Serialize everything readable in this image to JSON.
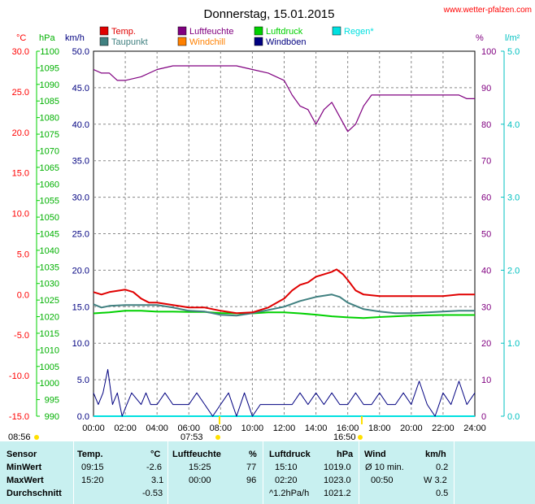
{
  "header": {
    "title": "Donnerstag, 15.01.2015",
    "source": "www.wetter-pfalzen.com"
  },
  "axes": {
    "units_left": [
      "°C",
      "hPa",
      "km/h"
    ],
    "units_right": [
      "%",
      "l/m²"
    ],
    "temp_ticks": [
      "30.0",
      "25.0",
      "20.0",
      "15.0",
      "10.0",
      "5.0",
      "0.0",
      "-5.0",
      "-10.0",
      "-15.0"
    ],
    "pressure_ticks": [
      "1100",
      "1095",
      "1090",
      "1085",
      "1080",
      "1075",
      "1070",
      "1065",
      "1060",
      "1055",
      "1050",
      "1045",
      "1040",
      "1035",
      "1030",
      "1025",
      "1020",
      "1015",
      "1010",
      "1005",
      "1000",
      "995",
      "990"
    ],
    "wind_ticks": [
      "50.0",
      "45.0",
      "40.0",
      "35.0",
      "30.0",
      "25.0",
      "20.0",
      "15.0",
      "10.0",
      "5.0",
      "0.0"
    ],
    "humidity_ticks": [
      "100",
      "90",
      "80",
      "70",
      "60",
      "50",
      "40",
      "30",
      "20",
      "10",
      "0"
    ],
    "rain_ticks": [
      "5.0",
      "4.0",
      "3.0",
      "2.0",
      "1.0",
      "0.0"
    ],
    "time_ticks": [
      "00:00",
      "02:00",
      "04:00",
      "06:00",
      "08:00",
      "10:00",
      "12:00",
      "14:00",
      "16:00",
      "18:00",
      "20:00",
      "22:00",
      "24:00"
    ],
    "sun": {
      "sunrise_prev": "08:56",
      "sunrise": "07:53",
      "sunset": "16:50"
    }
  },
  "legend": [
    {
      "label": "Temp.",
      "color": "#e00000"
    },
    {
      "label": "Luftfeuchte",
      "color": "#800080"
    },
    {
      "label": "Luftdruck",
      "color": "#00d000"
    },
    {
      "label": "Regen*",
      "color": "#00e0e0"
    },
    {
      "label": "Taupunkt",
      "color": "#408080"
    },
    {
      "label": "Windchill",
      "color": "#ff8000"
    },
    {
      "label": "Windböen",
      "color": "#000080"
    }
  ],
  "colors": {
    "temp": "#e00000",
    "dewpoint": "#408080",
    "humidity": "#800080",
    "pressure": "#00d000",
    "windgust": "#000080",
    "rain": "#00e0e0",
    "windchill": "#ff8000",
    "sun": "#ffe000",
    "stats_bg": "#c8f0f0"
  },
  "chart_data": {
    "type": "line",
    "title": "Donnerstag, 15.01.2015",
    "x_unit": "hour",
    "xlim": [
      0,
      24
    ],
    "axes_ranges": {
      "temp_c": [
        -15,
        30
      ],
      "pressure_hpa": [
        990,
        1100
      ],
      "wind_kmh": [
        0,
        50
      ],
      "humidity_pct": [
        0,
        100
      ],
      "rain_lm2": [
        0,
        5
      ]
    },
    "grid": true,
    "series": [
      {
        "name": "Temp.",
        "axis": "temp_c",
        "x": [
          0,
          0.5,
          1,
          2,
          2.5,
          3,
          3.5,
          4,
          5,
          6,
          7,
          8,
          9,
          10,
          11,
          12,
          12.5,
          13,
          13.5,
          14,
          14.5,
          15,
          15.3,
          15.7,
          16,
          16.5,
          17,
          18,
          19,
          20,
          21,
          22,
          23,
          24
        ],
        "y": [
          0.3,
          0.0,
          0.3,
          0.6,
          0.3,
          -0.5,
          -1.0,
          -1.0,
          -1.3,
          -1.6,
          -1.6,
          -2.0,
          -2.3,
          -2.2,
          -1.6,
          -0.5,
          0.5,
          1.2,
          1.5,
          2.2,
          2.5,
          2.8,
          3.1,
          2.5,
          1.8,
          0.5,
          0.0,
          -0.2,
          -0.2,
          -0.2,
          -0.2,
          -0.2,
          0.0,
          0.0
        ]
      },
      {
        "name": "Taupunkt",
        "axis": "temp_c",
        "x": [
          0,
          0.5,
          1,
          2,
          3,
          4,
          5,
          6,
          7,
          8,
          9,
          10,
          11,
          12,
          13,
          14,
          15,
          15.5,
          16,
          17,
          18,
          19,
          20,
          21,
          22,
          23,
          24
        ],
        "y": [
          -1.2,
          -1.6,
          -1.4,
          -1.3,
          -1.3,
          -1.3,
          -1.6,
          -2.0,
          -2.1,
          -2.5,
          -2.6,
          -2.3,
          -1.9,
          -1.5,
          -0.8,
          -0.3,
          0.0,
          -0.3,
          -1.0,
          -1.8,
          -2.1,
          -2.3,
          -2.3,
          -2.2,
          -2.1,
          -2.0,
          -2.0
        ]
      },
      {
        "name": "Luftfeuchte",
        "axis": "humidity_pct",
        "x": [
          0,
          0.5,
          1,
          1.5,
          2,
          3,
          4,
          5,
          6,
          7,
          8,
          9,
          10,
          11,
          11.5,
          12,
          12.5,
          13,
          13.5,
          14,
          14.5,
          15,
          15.5,
          16,
          16.5,
          17,
          17.5,
          18,
          19,
          20,
          21,
          22,
          23,
          23.5,
          24
        ],
        "y": [
          95,
          94,
          94,
          92,
          92,
          93,
          95,
          96,
          96,
          96,
          96,
          96,
          95,
          94,
          93,
          92,
          88,
          85,
          84,
          80,
          84,
          86,
          82,
          78,
          80,
          85,
          88,
          88,
          88,
          88,
          88,
          88,
          88,
          87,
          87
        ]
      },
      {
        "name": "Luftdruck",
        "axis": "pressure_hpa",
        "x": [
          0,
          1,
          2,
          3,
          4,
          5,
          6,
          7,
          8,
          9,
          10,
          11,
          12,
          13,
          14,
          15,
          16,
          17,
          18,
          19,
          20,
          21,
          22,
          23,
          24
        ],
        "y": [
          1021.0,
          1021.3,
          1021.8,
          1021.8,
          1021.5,
          1021.5,
          1021.4,
          1021.4,
          1021.1,
          1021.0,
          1021.0,
          1021.3,
          1021.3,
          1021.0,
          1020.6,
          1020.1,
          1019.8,
          1019.6,
          1019.9,
          1020.1,
          1020.3,
          1020.4,
          1020.5,
          1020.5,
          1020.5
        ]
      },
      {
        "name": "Windböen",
        "axis": "wind_kmh",
        "x": [
          0,
          0.3,
          0.6,
          0.9,
          1.2,
          1.5,
          1.8,
          2.1,
          2.4,
          3,
          3.3,
          3.6,
          4,
          4.5,
          5,
          5.5,
          6,
          6.5,
          7,
          7.5,
          8,
          8.5,
          9,
          9.5,
          10,
          10.5,
          11,
          11.5,
          12,
          12.5,
          13,
          13.5,
          14,
          14.5,
          15,
          15.5,
          16,
          16.5,
          17,
          17.5,
          18,
          18.5,
          19,
          19.5,
          20,
          20.5,
          21,
          21.5,
          22,
          22.5,
          23,
          23.5,
          24
        ],
        "y": [
          3.2,
          1.6,
          3.2,
          6.4,
          1.6,
          3.2,
          0.0,
          1.6,
          3.2,
          1.6,
          3.2,
          1.6,
          1.6,
          3.2,
          1.6,
          1.6,
          1.6,
          3.2,
          1.6,
          0.0,
          1.6,
          3.2,
          0.0,
          3.2,
          0.0,
          1.6,
          1.6,
          1.6,
          1.6,
          1.6,
          3.2,
          1.6,
          3.2,
          1.6,
          3.2,
          1.6,
          1.6,
          3.2,
          1.6,
          1.6,
          3.2,
          1.6,
          1.6,
          3.2,
          1.6,
          4.8,
          1.6,
          0.0,
          3.2,
          1.6,
          4.8,
          1.6,
          3.2
        ]
      },
      {
        "name": "Regen*",
        "axis": "rain_lm2",
        "x": [
          0,
          24
        ],
        "y": [
          0,
          0
        ]
      }
    ]
  },
  "stats": {
    "headers": {
      "sensor": "Sensor",
      "temp": "Temp.",
      "temp_unit": "°C",
      "hum": "Luftfeuchte",
      "hum_unit": "%",
      "press": "Luftdruck",
      "press_unit": "hPa",
      "wind": "Wind",
      "wind_unit": "km/h"
    },
    "rows": [
      {
        "label": "MinWert",
        "t_time": "09:15",
        "t_val": "-2.6",
        "h_time": "15:25",
        "h_val": "77",
        "p_time": "15:10",
        "p_val": "1019.0",
        "w_lbl": "Ø 10 min.",
        "w_val": "0.2"
      },
      {
        "label": "MaxWert",
        "t_time": "15:20",
        "t_val": "3.1",
        "h_time": "00:00",
        "h_val": "96",
        "p_time": "02:20",
        "p_val": "1023.0",
        "w_lbl": "00:50",
        "w_val": "W 3.2"
      },
      {
        "label": "Durchschnitt",
        "t_time": "",
        "t_val": "-0.53",
        "h_time": "",
        "h_val": "",
        "p_time": "^1.2hPa/h",
        "p_val": "1021.2",
        "w_lbl": "",
        "w_val": "0.5"
      }
    ]
  }
}
